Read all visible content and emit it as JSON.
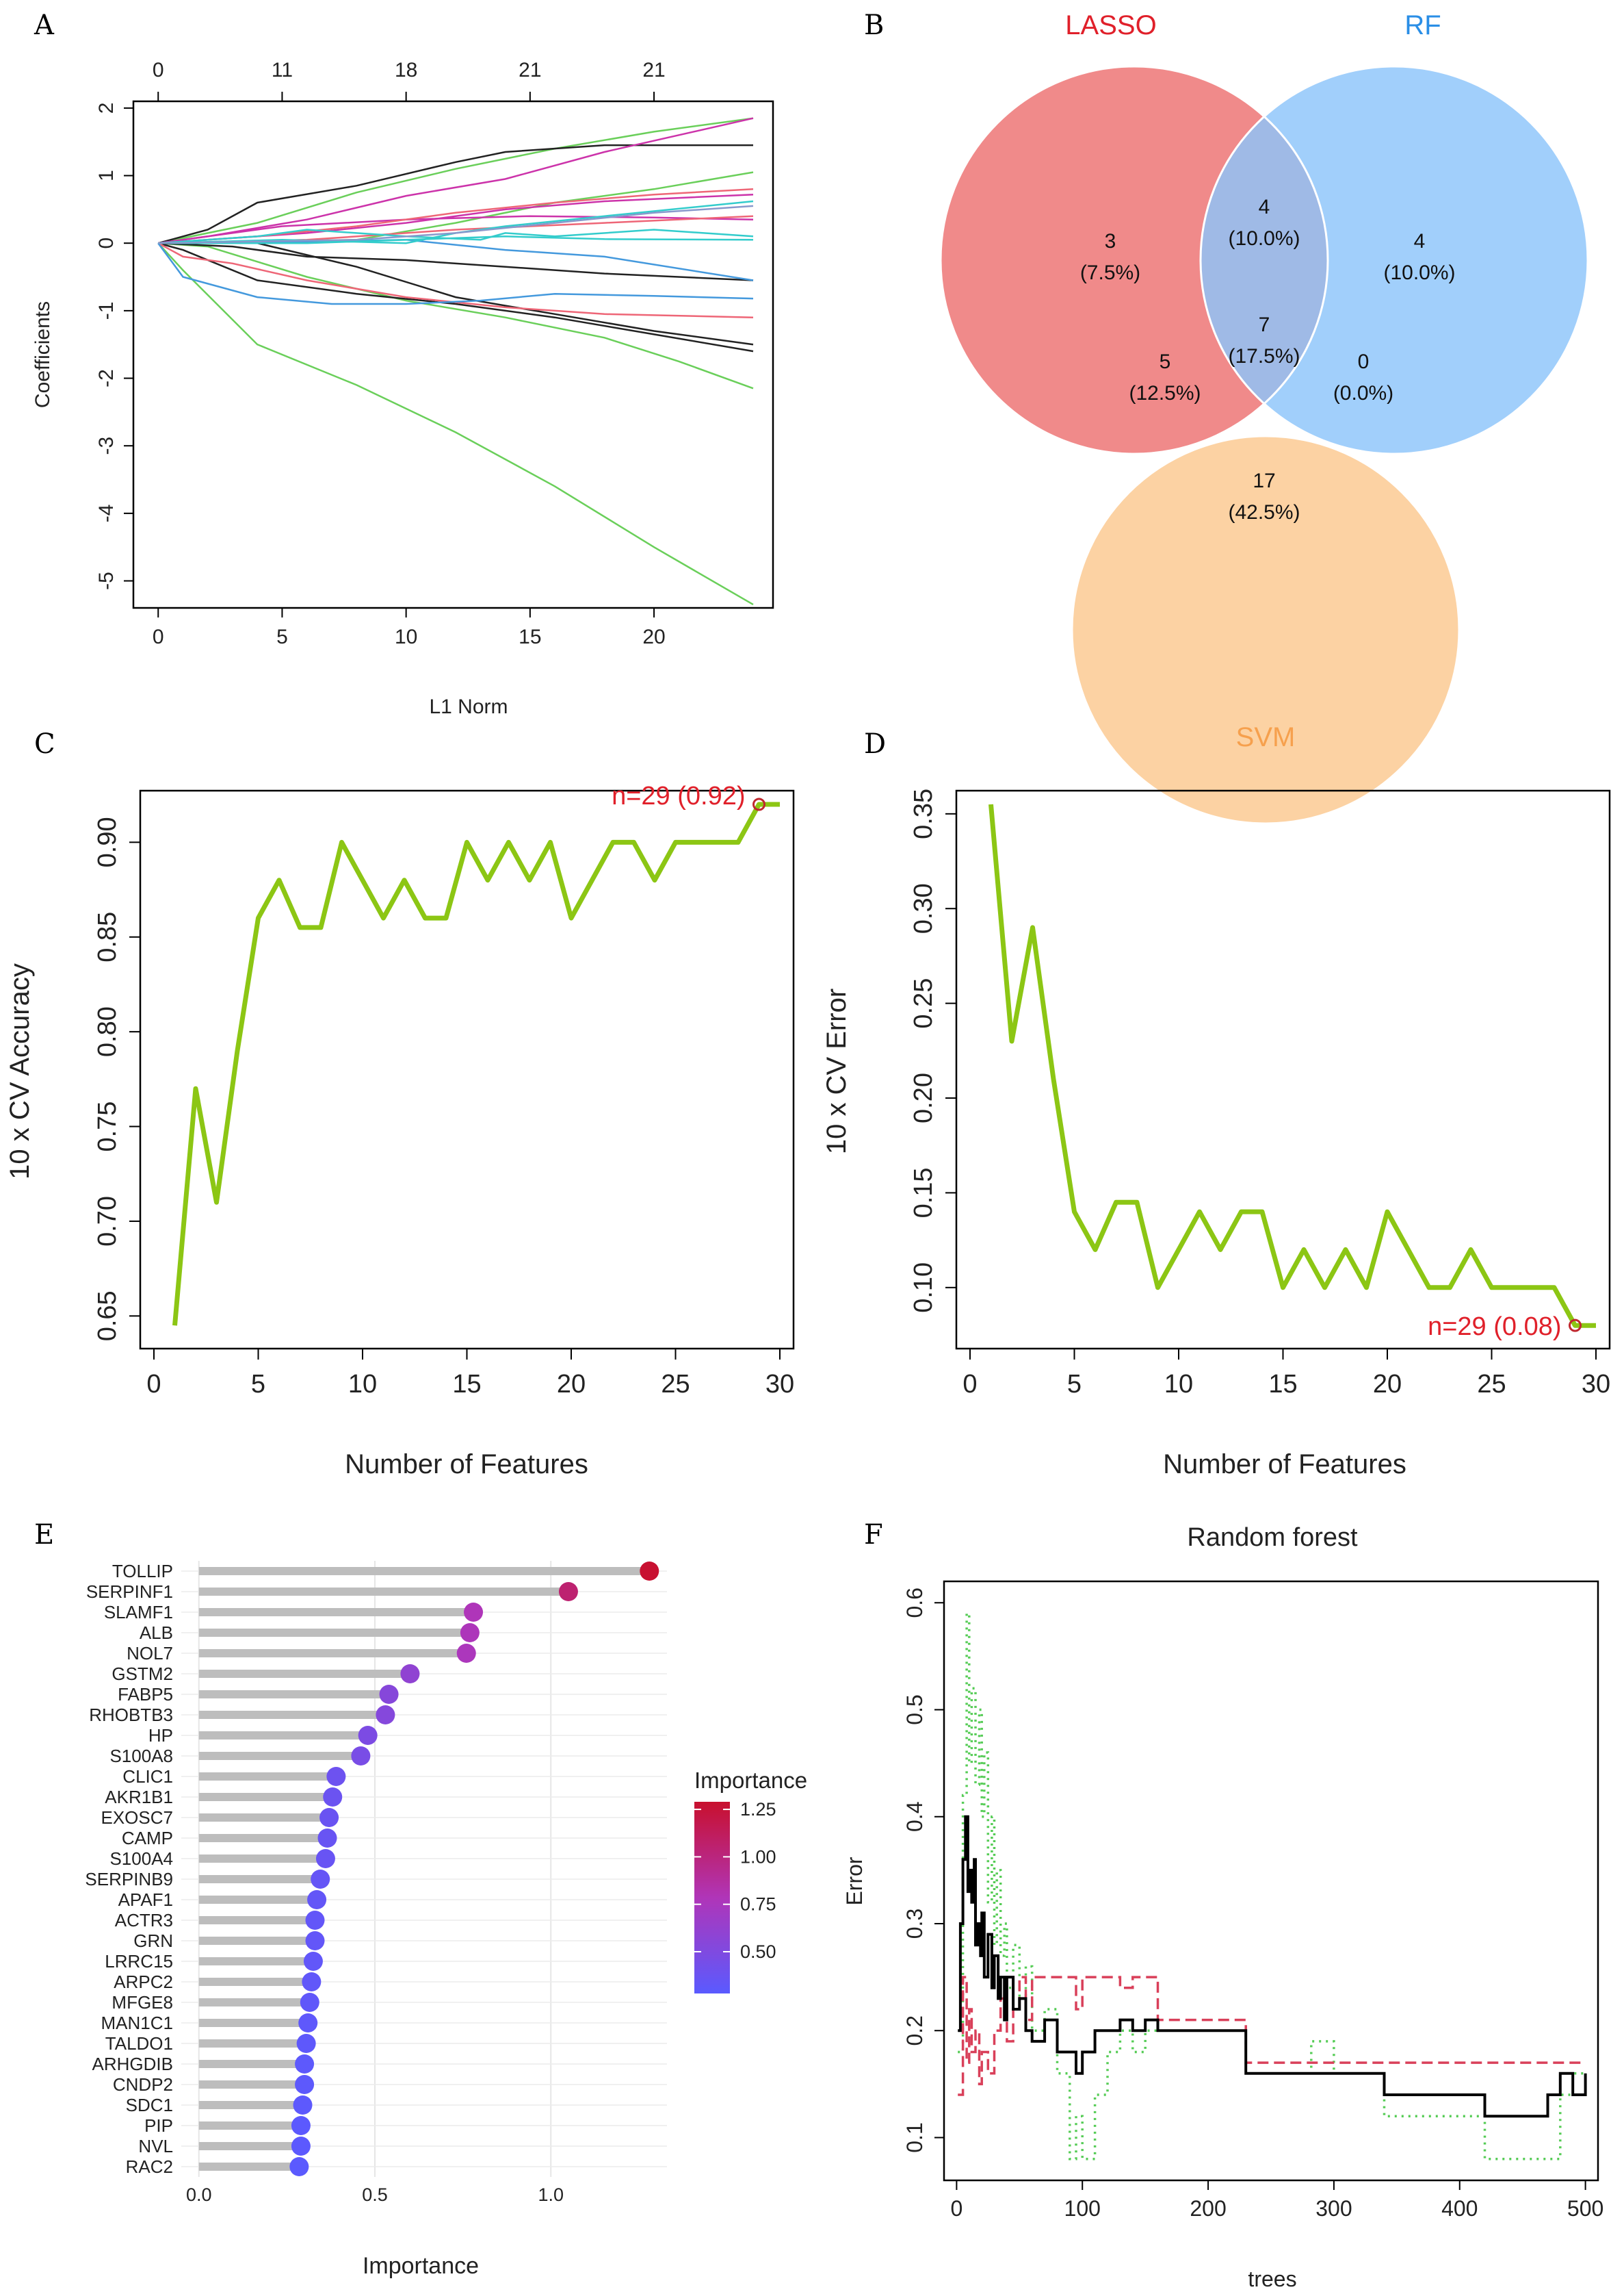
{
  "panels": {
    "a": "A",
    "b": "B",
    "c": "C",
    "d": "D",
    "e": "E",
    "f": "F"
  },
  "colors": {
    "green_line": "#8cc614",
    "red": "#e0202a",
    "lasso": "#f08a8a",
    "rf": "#8cc4fa",
    "svm": "#fbc080",
    "grid": "#e9e9e9",
    "stem": "#bdbdbd"
  },
  "chart_data": [
    {
      "id": "A",
      "type": "line",
      "title": "",
      "xlabel": "L1 Norm",
      "ylabel": "Coefficients",
      "xlim": [
        0,
        24
      ],
      "ylim": [
        -5.4,
        2.1
      ],
      "xticks": [
        0,
        5,
        10,
        15,
        20
      ],
      "yticks": [
        2,
        1,
        0,
        -1,
        -2,
        -3,
        -4,
        -5
      ],
      "top_axis": {
        "positions": [
          0,
          5,
          10,
          15,
          20
        ],
        "labels": [
          "0",
          "11",
          "18",
          "21",
          "21"
        ]
      },
      "series": [
        {
          "color": "#6acf5a",
          "x": [
            0,
            1,
            4,
            8,
            12,
            16,
            20,
            24
          ],
          "y": [
            0,
            -0.4,
            -1.5,
            -2.1,
            -2.8,
            -3.6,
            -4.5,
            -5.35
          ]
        },
        {
          "color": "#6acf5a",
          "x": [
            0,
            2,
            6,
            10,
            14,
            18,
            21,
            24
          ],
          "y": [
            0,
            -0.05,
            -0.5,
            -0.85,
            -1.1,
            -1.4,
            -1.75,
            -2.15
          ]
        },
        {
          "color": "#6acf5a",
          "x": [
            0,
            4,
            8,
            12,
            16,
            20,
            24
          ],
          "y": [
            0,
            0.3,
            0.75,
            1.1,
            1.4,
            1.65,
            1.85
          ]
        },
        {
          "color": "#6acf5a",
          "x": [
            0,
            8,
            12,
            16,
            20,
            24
          ],
          "y": [
            0,
            0.05,
            0.3,
            0.6,
            0.8,
            1.05
          ]
        },
        {
          "color": "#222222",
          "x": [
            0,
            2,
            4,
            8,
            12,
            14,
            18,
            24
          ],
          "y": [
            0,
            0.2,
            0.6,
            0.85,
            1.2,
            1.35,
            1.45,
            1.45
          ]
        },
        {
          "color": "#222222",
          "x": [
            0,
            1,
            4,
            8,
            12,
            16,
            20,
            24
          ],
          "y": [
            0,
            -0.1,
            -0.55,
            -0.75,
            -0.9,
            -1.1,
            -1.35,
            -1.6
          ]
        },
        {
          "color": "#222222",
          "x": [
            0,
            3,
            6,
            10,
            14,
            18,
            24
          ],
          "y": [
            0,
            -0.05,
            -0.2,
            -0.25,
            -0.35,
            -0.45,
            -0.55
          ]
        },
        {
          "color": "#222222",
          "x": [
            0,
            4,
            8,
            12,
            16,
            20,
            24
          ],
          "y": [
            0,
            0,
            -0.35,
            -0.8,
            -1.05,
            -1.3,
            -1.5
          ]
        },
        {
          "color": "#cc33aa",
          "x": [
            0,
            2,
            6,
            10,
            14,
            18,
            24
          ],
          "y": [
            0,
            0.1,
            0.35,
            0.7,
            0.95,
            1.35,
            1.85
          ]
        },
        {
          "color": "#cc33aa",
          "x": [
            0,
            5,
            10,
            15,
            20,
            24
          ],
          "y": [
            0,
            0.25,
            0.35,
            0.4,
            0.38,
            0.35
          ]
        },
        {
          "color": "#cc33aa",
          "x": [
            0,
            6,
            10,
            14,
            18,
            24
          ],
          "y": [
            0,
            0.15,
            0.3,
            0.5,
            0.62,
            0.72
          ]
        },
        {
          "color": "#ee6677",
          "x": [
            0,
            1,
            3,
            6,
            10,
            14,
            18,
            24
          ],
          "y": [
            0,
            -0.2,
            -0.3,
            -0.55,
            -0.8,
            -0.95,
            -1.05,
            -1.1
          ]
        },
        {
          "color": "#ee6677",
          "x": [
            0,
            4,
            8,
            12,
            16,
            20,
            24
          ],
          "y": [
            0,
            0.1,
            0.25,
            0.45,
            0.6,
            0.72,
            0.8
          ]
        },
        {
          "color": "#ee6677",
          "x": [
            0,
            6,
            12,
            18,
            24
          ],
          "y": [
            0,
            0.05,
            0.2,
            0.3,
            0.4
          ]
        },
        {
          "color": "#4499dd",
          "x": [
            0,
            1,
            4,
            7,
            10,
            13,
            16,
            20,
            24
          ],
          "y": [
            0,
            -0.5,
            -0.8,
            -0.9,
            -0.9,
            -0.85,
            -0.75,
            -0.78,
            -0.82
          ]
        },
        {
          "color": "#4499dd",
          "x": [
            0,
            6,
            10,
            14,
            18,
            24
          ],
          "y": [
            0,
            0.02,
            0.05,
            -0.1,
            -0.2,
            -0.55
          ]
        },
        {
          "color": "#33cccc",
          "x": [
            0,
            4,
            6,
            10,
            13,
            14,
            16,
            20,
            24
          ],
          "y": [
            0,
            0.1,
            0.2,
            0.1,
            0.05,
            0.15,
            0.1,
            0.2,
            0.1
          ]
        },
        {
          "color": "#33cccc",
          "x": [
            0,
            5,
            10,
            12,
            14,
            18,
            24
          ],
          "y": [
            0,
            0.05,
            0.0,
            0.15,
            0.25,
            0.4,
            0.62
          ]
        },
        {
          "color": "#33cccc",
          "x": [
            0,
            6,
            10,
            14,
            18,
            24
          ],
          "y": [
            0,
            0.0,
            0.05,
            0.1,
            0.06,
            0.05
          ]
        },
        {
          "color": "#8899cc",
          "x": [
            0,
            8,
            12,
            16,
            20,
            24
          ],
          "y": [
            0,
            0.05,
            0.15,
            0.3,
            0.45,
            0.55
          ]
        }
      ]
    },
    {
      "id": "B",
      "type": "venn",
      "sets": [
        {
          "name": "LASSO",
          "color": "#e0202a"
        },
        {
          "name": "RF",
          "color": "#2a8ee6"
        },
        {
          "name": "SVM",
          "color": "#f6a04d"
        }
      ],
      "regions": [
        {
          "id": "lasso_only",
          "count": "3",
          "pct": "(7.5%)"
        },
        {
          "id": "lasso_rf",
          "count": "4",
          "pct": "(10.0%)"
        },
        {
          "id": "rf_only",
          "count": "4",
          "pct": "(10.0%)"
        },
        {
          "id": "lasso_svm",
          "count": "5",
          "pct": "(12.5%)"
        },
        {
          "id": "all",
          "count": "7",
          "pct": "(17.5%)"
        },
        {
          "id": "rf_svm",
          "count": "0",
          "pct": "(0.0%)"
        },
        {
          "id": "svm_only",
          "count": "17",
          "pct": "(42.5%)"
        }
      ]
    },
    {
      "id": "C",
      "type": "line",
      "xlabel": "Number of Features",
      "ylabel": "10 x CV Accuracy",
      "xlim": [
        0,
        30
      ],
      "ylim": [
        0.64,
        0.92
      ],
      "xticks": [
        0,
        5,
        10,
        15,
        20,
        25,
        30
      ],
      "yticks": [
        0.65,
        0.7,
        0.75,
        0.8,
        0.85,
        0.9
      ],
      "ytick_labels": [
        "0.65",
        "0.70",
        "0.75",
        "0.80",
        "0.85",
        "0.90"
      ],
      "x": [
        1,
        2,
        3,
        4,
        5,
        6,
        7,
        8,
        9,
        10,
        11,
        12,
        13,
        14,
        15,
        16,
        17,
        18,
        19,
        20,
        21,
        22,
        23,
        24,
        25,
        26,
        27,
        28,
        29,
        30
      ],
      "y": [
        0.645,
        0.77,
        0.71,
        0.79,
        0.86,
        0.88,
        0.855,
        0.855,
        0.9,
        0.88,
        0.86,
        0.88,
        0.86,
        0.86,
        0.9,
        0.88,
        0.9,
        0.88,
        0.9,
        0.86,
        0.88,
        0.9,
        0.9,
        0.88,
        0.9,
        0.9,
        0.9,
        0.9,
        0.92,
        0.92
      ],
      "highlight": {
        "x": 29,
        "y": 0.92,
        "label": "n=29 (0.92)"
      }
    },
    {
      "id": "D",
      "type": "line",
      "xlabel": "Number of Features",
      "ylabel": "10 x CV Error",
      "xlim": [
        0,
        30
      ],
      "ylim": [
        0.075,
        0.355
      ],
      "xticks": [
        0,
        5,
        10,
        15,
        20,
        25,
        30
      ],
      "yticks": [
        0.1,
        0.15,
        0.2,
        0.25,
        0.3,
        0.35
      ],
      "ytick_labels": [
        "0.10",
        "0.15",
        "0.20",
        "0.25",
        "0.30",
        "0.35"
      ],
      "x": [
        1,
        2,
        3,
        4,
        5,
        6,
        7,
        8,
        9,
        10,
        11,
        12,
        13,
        14,
        15,
        16,
        17,
        18,
        19,
        20,
        21,
        22,
        23,
        24,
        25,
        26,
        27,
        28,
        29,
        30
      ],
      "y": [
        0.355,
        0.23,
        0.29,
        0.21,
        0.14,
        0.12,
        0.145,
        0.145,
        0.1,
        0.12,
        0.14,
        0.12,
        0.14,
        0.14,
        0.1,
        0.12,
        0.1,
        0.12,
        0.1,
        0.14,
        0.12,
        0.1,
        0.1,
        0.12,
        0.1,
        0.1,
        0.1,
        0.1,
        0.08,
        0.08
      ],
      "highlight": {
        "x": 29,
        "y": 0.08,
        "label": "n=29 (0.08)"
      }
    },
    {
      "id": "E",
      "type": "lollipop",
      "xlabel": "Importance",
      "xlim": [
        -0.05,
        1.33
      ],
      "xticks": [
        0.0,
        0.5,
        1.0
      ],
      "xtick_labels": [
        "0.0",
        "0.5",
        "1.0"
      ],
      "legend": {
        "title": "Importance",
        "ticks": [
          "1.25",
          "1.00",
          "0.75",
          "0.50"
        ],
        "tick_values": [
          1.25,
          1.0,
          0.75,
          0.5
        ],
        "range": [
          0.28,
          1.29
        ]
      },
      "categories": [
        "TOLLIP",
        "SERPINF1",
        "SLAMF1",
        "ALB",
        "NOL7",
        "GSTM2",
        "FABP5",
        "RHOBTB3",
        "HP",
        "S100A8",
        "CLIC1",
        "AKR1B1",
        "EXOSC7",
        "CAMP",
        "S100A4",
        "SERPINB9",
        "APAF1",
        "ACTR3",
        "GRN",
        "LRRC15",
        "ARPC2",
        "MFGE8",
        "MAN1C1",
        "TALDO1",
        "ARHGDIB",
        "CNDP2",
        "SDC1",
        "PIP",
        "NVL",
        "RAC2"
      ],
      "values": [
        1.28,
        1.05,
        0.78,
        0.77,
        0.76,
        0.6,
        0.54,
        0.53,
        0.48,
        0.46,
        0.39,
        0.38,
        0.37,
        0.365,
        0.36,
        0.345,
        0.335,
        0.33,
        0.33,
        0.325,
        0.32,
        0.315,
        0.31,
        0.305,
        0.3,
        0.3,
        0.295,
        0.29,
        0.29,
        0.285
      ]
    },
    {
      "id": "F",
      "type": "line",
      "title": "Random forest",
      "xlabel": "trees",
      "ylabel": "Error",
      "xlim": [
        -10,
        510
      ],
      "ylim": [
        0.06,
        0.62
      ],
      "xticks": [
        0,
        100,
        200,
        300,
        400,
        500
      ],
      "yticks": [
        0.1,
        0.2,
        0.3,
        0.4,
        0.5,
        0.6
      ],
      "ytick_labels": [
        "0.1",
        "0.2",
        "0.3",
        "0.4",
        "0.5",
        "0.6"
      ],
      "series": [
        {
          "name": "green",
          "color": "#55cc55",
          "dash": "3,7",
          "x": [
            1,
            5,
            8,
            10,
            12,
            15,
            18,
            20,
            22,
            25,
            28,
            30,
            32,
            35,
            38,
            40,
            45,
            50,
            55,
            60,
            70,
            80,
            90,
            95,
            100,
            110,
            120,
            130,
            140,
            150,
            160,
            200,
            230,
            260,
            280,
            282,
            300,
            330,
            340,
            400,
            420,
            440,
            460,
            470,
            480,
            490,
            500
          ],
          "y": [
            0.18,
            0.42,
            0.59,
            0.45,
            0.52,
            0.43,
            0.5,
            0.4,
            0.46,
            0.32,
            0.4,
            0.28,
            0.35,
            0.27,
            0.3,
            0.24,
            0.28,
            0.22,
            0.26,
            0.2,
            0.22,
            0.16,
            0.08,
            0.12,
            0.08,
            0.14,
            0.18,
            0.2,
            0.18,
            0.2,
            0.2,
            0.2,
            0.16,
            0.16,
            0.16,
            0.19,
            0.16,
            0.16,
            0.12,
            0.12,
            0.08,
            0.08,
            0.08,
            0.08,
            0.14,
            0.16,
            0.16
          ]
        },
        {
          "name": "red",
          "color": "#d9405a",
          "dash": "16,8",
          "x": [
            1,
            5,
            8,
            10,
            12,
            15,
            18,
            20,
            25,
            30,
            35,
            40,
            45,
            50,
            55,
            60,
            70,
            80,
            90,
            95,
            100,
            110,
            120,
            130,
            140,
            150,
            160,
            200,
            230,
            260,
            300,
            330,
            340,
            400,
            420,
            460,
            470,
            480,
            490,
            500
          ],
          "y": [
            0.14,
            0.25,
            0.17,
            0.22,
            0.18,
            0.2,
            0.15,
            0.18,
            0.16,
            0.2,
            0.23,
            0.19,
            0.22,
            0.25,
            0.21,
            0.25,
            0.25,
            0.25,
            0.25,
            0.22,
            0.25,
            0.25,
            0.25,
            0.24,
            0.25,
            0.25,
            0.21,
            0.21,
            0.17,
            0.17,
            0.17,
            0.17,
            0.17,
            0.17,
            0.17,
            0.17,
            0.17,
            0.17,
            0.17,
            0.17
          ]
        },
        {
          "name": "black",
          "color": "#000000",
          "dash": "",
          "x": [
            1,
            3,
            5,
            7,
            9,
            10,
            12,
            14,
            15,
            17,
            19,
            20,
            22,
            25,
            28,
            30,
            33,
            35,
            38,
            40,
            45,
            50,
            55,
            60,
            70,
            80,
            90,
            95,
            100,
            110,
            120,
            130,
            140,
            150,
            160,
            200,
            230,
            260,
            300,
            330,
            340,
            400,
            420,
            460,
            470,
            480,
            490,
            500
          ],
          "y": [
            0.2,
            0.3,
            0.36,
            0.4,
            0.33,
            0.35,
            0.32,
            0.36,
            0.28,
            0.3,
            0.27,
            0.31,
            0.25,
            0.29,
            0.24,
            0.27,
            0.23,
            0.25,
            0.21,
            0.25,
            0.22,
            0.23,
            0.2,
            0.19,
            0.21,
            0.18,
            0.18,
            0.16,
            0.18,
            0.2,
            0.2,
            0.21,
            0.2,
            0.21,
            0.2,
            0.2,
            0.16,
            0.16,
            0.16,
            0.16,
            0.14,
            0.14,
            0.12,
            0.12,
            0.14,
            0.16,
            0.14,
            0.16
          ]
        }
      ]
    }
  ]
}
